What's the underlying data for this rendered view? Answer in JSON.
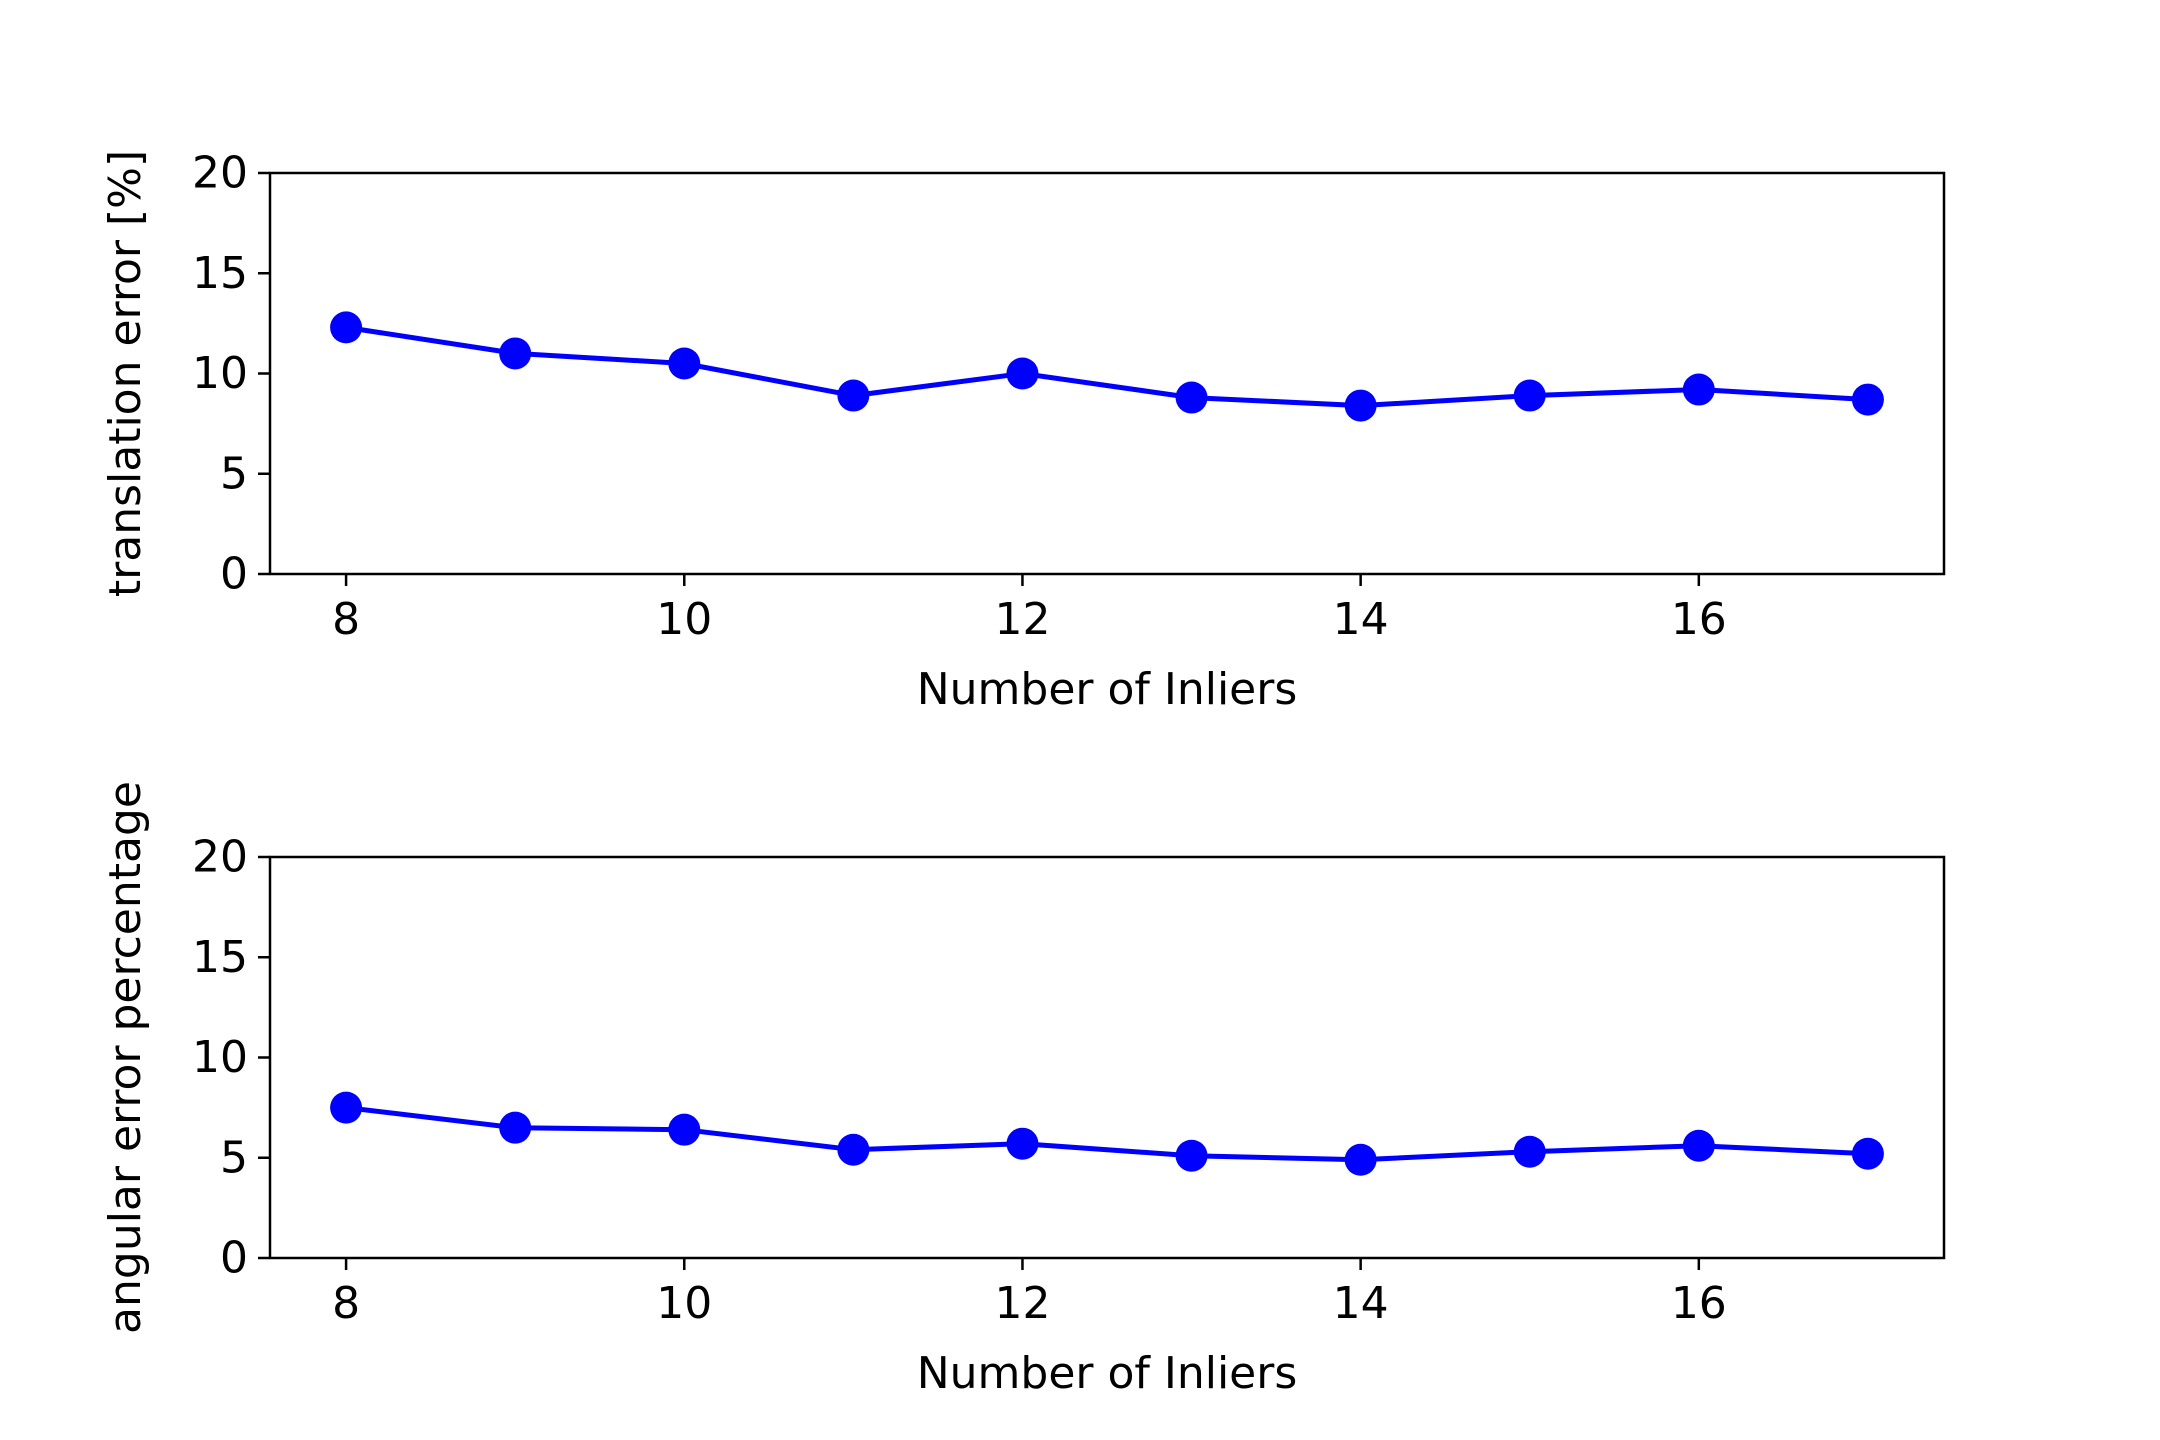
{
  "chart_data": [
    {
      "type": "line",
      "xlabel": "Number of Inliers",
      "ylabel": "translation error [%]",
      "xlim": [
        7.55,
        17.45
      ],
      "ylim": [
        0,
        20
      ],
      "xticks": [
        "8",
        "10",
        "12",
        "14",
        "16"
      ],
      "yticks": [
        "0",
        "5",
        "10",
        "15",
        "20"
      ],
      "grid": false,
      "legend": "none",
      "series": [
        {
          "color": "#0000ff",
          "marker": "circle",
          "x": [
            8,
            9,
            10,
            11,
            12,
            13,
            14,
            15,
            16,
            17
          ],
          "y": [
            12.3,
            11.0,
            10.5,
            8.9,
            10.0,
            8.8,
            8.4,
            8.9,
            9.2,
            8.7
          ]
        }
      ]
    },
    {
      "type": "line",
      "xlabel": "Number of Inliers",
      "ylabel": "angular error percentage",
      "xlim": [
        7.55,
        17.45
      ],
      "ylim": [
        0,
        20
      ],
      "xticks": [
        "8",
        "10",
        "12",
        "14",
        "16"
      ],
      "yticks": [
        "0",
        "5",
        "10",
        "15",
        "20"
      ],
      "grid": false,
      "legend": "none",
      "series": [
        {
          "color": "#0000ff",
          "marker": "circle",
          "x": [
            8,
            9,
            10,
            11,
            12,
            13,
            14,
            15,
            16,
            17
          ],
          "y": [
            7.5,
            6.5,
            6.4,
            5.4,
            5.7,
            5.1,
            4.9,
            5.3,
            5.6,
            5.2
          ]
        }
      ]
    }
  ]
}
